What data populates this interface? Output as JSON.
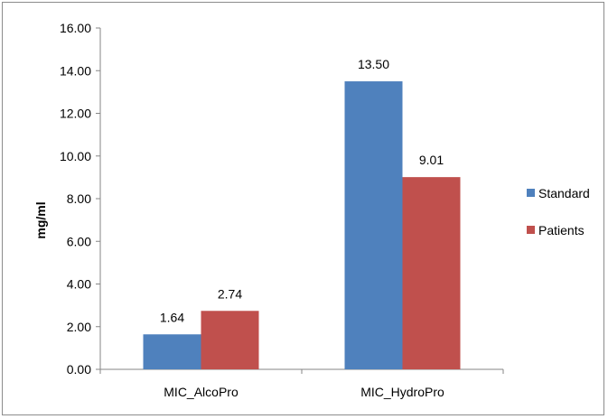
{
  "chart_data": {
    "type": "bar",
    "title": "",
    "xlabel": "",
    "ylabel": "mg/ml",
    "ylim": [
      0,
      16
    ],
    "yticks": [
      "0.00",
      "2.00",
      "4.00",
      "6.00",
      "8.00",
      "10.00",
      "12.00",
      "14.00",
      "16.00"
    ],
    "categories": [
      "MIC_AlcoPro",
      "MIC_HydroPro"
    ],
    "series": [
      {
        "name": "Standard",
        "color": "#4f81bd",
        "values": [
          1.64,
          13.5
        ],
        "labels": [
          "1.64",
          "13.50"
        ]
      },
      {
        "name": "Patients",
        "color": "#c0504d",
        "values": [
          2.74,
          9.01
        ],
        "labels": [
          "2.74",
          "9.01"
        ]
      }
    ],
    "grid": false,
    "legend": "right"
  }
}
